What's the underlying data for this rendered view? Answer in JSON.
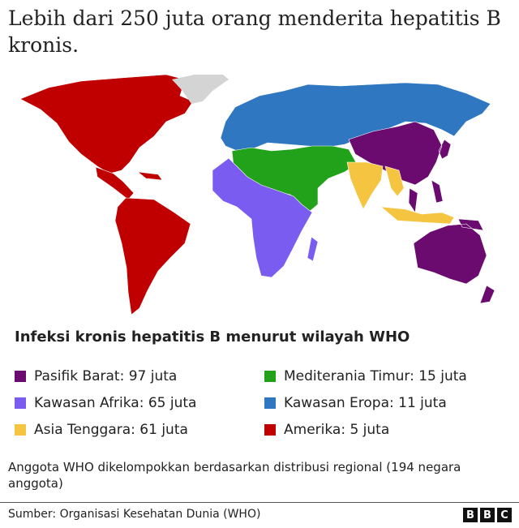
{
  "title": "Lebih dari 250 juta orang menderita hepatitis B kronis.",
  "legend_title": "Infeksi kronis hepatitis B menurut wilayah WHO",
  "legend": [
    {
      "label": "Pasifik Barat: 97 juta",
      "color": "#6b0a6f"
    },
    {
      "label": "Kawasan Afrika: 65 juta",
      "color": "#7b5cf0"
    },
    {
      "label": "Asia Tenggara: 61 juta",
      "color": "#f5c542"
    },
    {
      "label": "Mediterania Timur: 15 juta",
      "color": "#22a21a"
    },
    {
      "label": "Kawasan Eropa: 11 juta",
      "color": "#2f77c0"
    },
    {
      "label": "Amerika: 5 juta",
      "color": "#c00000"
    }
  ],
  "non_member_color": "#d4d4d4",
  "note": "Anggota WHO dikelompokkan berdasarkan distribusi regional (194 negara anggota)",
  "source": "Sumber: Organisasi Kesehatan Dunia (WHO)",
  "logo": [
    "B",
    "B",
    "C"
  ]
}
